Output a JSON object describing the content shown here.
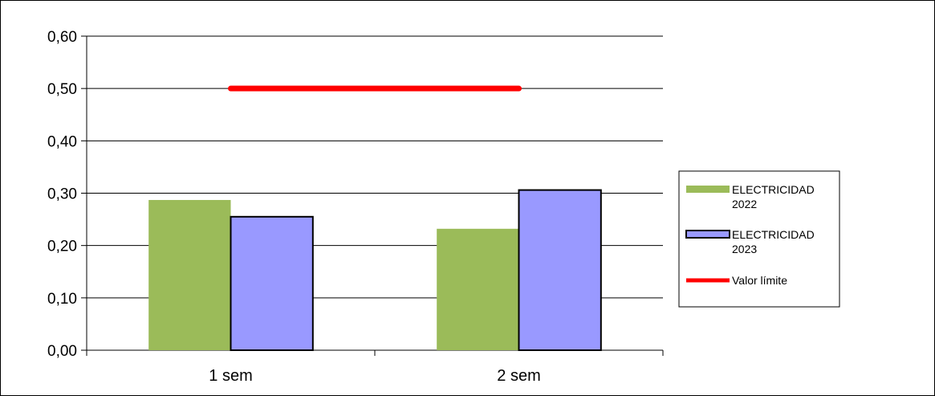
{
  "chart_data": {
    "type": "bar",
    "categories": [
      "1 sem",
      "2 sem"
    ],
    "series": [
      {
        "name": "ELECTRICIDAD 2022",
        "name_lines": [
          "ELECTRICIDAD",
          "2022"
        ],
        "type": "bar",
        "values": [
          0.287,
          0.232
        ],
        "color": "#9bbb59"
      },
      {
        "name": "ELECTRICIDAD 2023",
        "name_lines": [
          "ELECTRICIDAD",
          "2023"
        ],
        "type": "bar",
        "values": [
          0.255,
          0.306
        ],
        "color": "#9999ff"
      },
      {
        "name": "Valor límite",
        "name_lines": [
          "Valor límite"
        ],
        "type": "line",
        "values": [
          0.5,
          0.5
        ],
        "color": "#ff0000"
      }
    ],
    "y_ticks": [
      "0,00",
      "0,10",
      "0,20",
      "0,30",
      "0,40",
      "0,50",
      "0,60"
    ],
    "ylim": [
      0,
      0.6
    ],
    "grid": true,
    "legend": "right",
    "title": "",
    "xlabel": "",
    "ylabel": ""
  }
}
